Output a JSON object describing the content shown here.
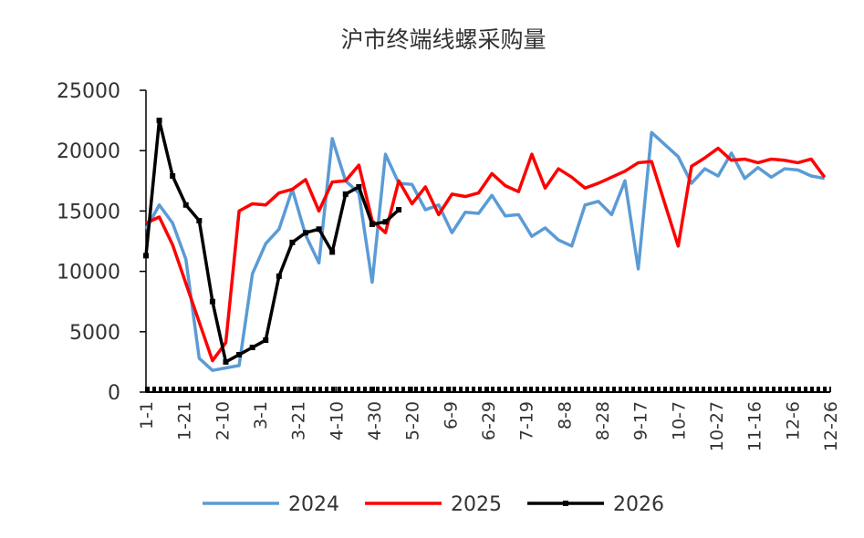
{
  "chart_data": {
    "type": "line",
    "title": "沪市终端线螺采购量",
    "x": [
      0,
      7,
      14,
      21,
      28,
      35,
      42,
      49,
      56,
      63,
      70,
      77,
      84,
      91,
      98,
      105,
      112,
      119,
      126,
      133,
      140,
      147,
      154,
      161,
      168,
      175,
      182,
      189,
      196,
      203,
      210,
      217,
      224,
      231,
      238,
      245,
      252,
      259,
      266,
      273,
      280,
      287,
      294,
      301,
      308,
      315,
      322,
      329,
      336,
      343,
      350,
      357
    ],
    "xlim": [
      0,
      360
    ],
    "xticks": [
      {
        "value": 0,
        "label": "1-1"
      },
      {
        "value": 20,
        "label": "1-21"
      },
      {
        "value": 40,
        "label": "2-10"
      },
      {
        "value": 60,
        "label": "3-1"
      },
      {
        "value": 80,
        "label": "3-21"
      },
      {
        "value": 100,
        "label": "4-10"
      },
      {
        "value": 120,
        "label": "4-30"
      },
      {
        "value": 140,
        "label": "5-20"
      },
      {
        "value": 160,
        "label": "6-9"
      },
      {
        "value": 180,
        "label": "6-29"
      },
      {
        "value": 200,
        "label": "7-19"
      },
      {
        "value": 220,
        "label": "8-8"
      },
      {
        "value": 240,
        "label": "8-28"
      },
      {
        "value": 260,
        "label": "9-17"
      },
      {
        "value": 280,
        "label": "10-7"
      },
      {
        "value": 300,
        "label": "10-27"
      },
      {
        "value": 320,
        "label": "11-16"
      },
      {
        "value": 340,
        "label": "12-6"
      },
      {
        "value": 360,
        "label": "12-26"
      }
    ],
    "ylim": [
      0,
      25000
    ],
    "yticks": [
      0,
      5000,
      10000,
      15000,
      20000,
      25000
    ],
    "legend": "bottom",
    "series": [
      {
        "name": "2024",
        "color": "#5b9bd5",
        "marker": false,
        "values": [
          13500,
          15500,
          14000,
          11000,
          2800,
          1800,
          2000,
          2200,
          9800,
          12300,
          13500,
          16800,
          13000,
          10700,
          21000,
          17500,
          16500,
          9100,
          19700,
          17300,
          17200,
          15100,
          15500,
          13200,
          14900,
          14800,
          16300,
          14600,
          14700,
          12900,
          13600,
          12600,
          12100,
          15500,
          15800,
          14700,
          17500,
          10200,
          21500,
          20500,
          19500,
          17300,
          18500,
          17900,
          19800,
          17700,
          18600,
          17800,
          18500,
          18400,
          17900,
          17700
        ]
      },
      {
        "name": "2025",
        "color": "#ff0000",
        "marker": false,
        "values": [
          14000,
          14500,
          12200,
          9000,
          5800,
          2600,
          4100,
          15000,
          15600,
          15500,
          16500,
          16800,
          17600,
          15000,
          17400,
          17500,
          18800,
          14200,
          13200,
          17500,
          15600,
          17000,
          14700,
          16400,
          16200,
          16500,
          18100,
          17100,
          16600,
          19700,
          16900,
          18500,
          17800,
          16900,
          17300,
          17800,
          18300,
          19000,
          19100,
          15600,
          12100,
          18700,
          19400,
          20200,
          19200,
          19300,
          19000,
          19300,
          19200,
          19000,
          19300,
          17800
        ]
      },
      {
        "name": "2026",
        "color": "#000000",
        "marker": true,
        "values": [
          11300,
          22500,
          17900,
          15500,
          14200,
          7500,
          2500,
          3100,
          3700,
          4300,
          9600,
          12400,
          13200,
          13500,
          11600,
          16400,
          17000,
          13900,
          14100,
          15100,
          null,
          null,
          null,
          null,
          null,
          null,
          null,
          null,
          null,
          null,
          null,
          null,
          null,
          null,
          null,
          null,
          null,
          null,
          null,
          null,
          null,
          null,
          null,
          null,
          null,
          null,
          null,
          null,
          null,
          null,
          null,
          null
        ]
      }
    ]
  }
}
